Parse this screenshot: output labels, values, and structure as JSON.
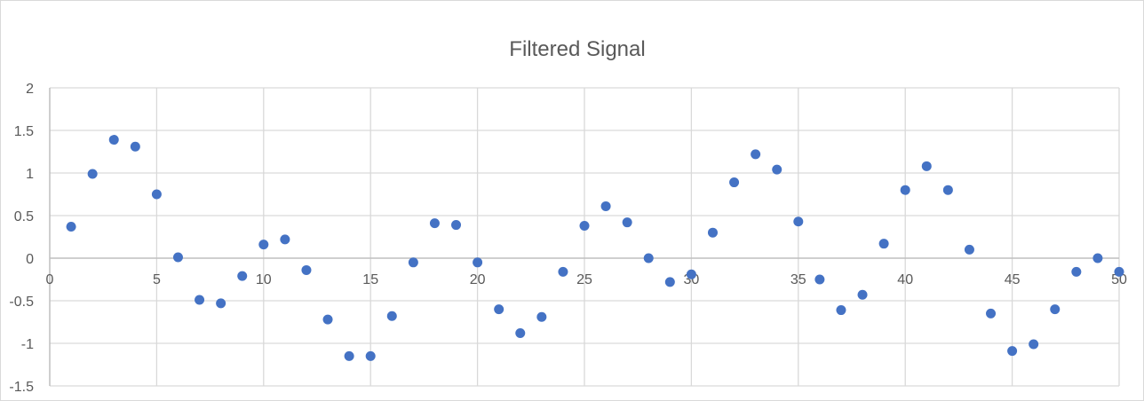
{
  "chart_data": {
    "type": "scatter",
    "title": "Filtered Signal",
    "xlabel": "",
    "ylabel": "",
    "xlim": [
      0,
      50
    ],
    "ylim": [
      -1.5,
      2
    ],
    "x_ticks": [
      "0",
      "5",
      "10",
      "15",
      "20",
      "25",
      "30",
      "35",
      "40",
      "45",
      "50"
    ],
    "y_ticks": [
      "2",
      "1.5",
      "1",
      "0.5",
      "0",
      "-0.5",
      "-1",
      "-1.5"
    ],
    "grid": true,
    "legend": "none",
    "color": "#4472c4",
    "series": [
      {
        "x": [
          1,
          2,
          3,
          4,
          5,
          6,
          7,
          8,
          9,
          10,
          11,
          12,
          13,
          14,
          15,
          16,
          17,
          18,
          19,
          20,
          21,
          22,
          23,
          24,
          25,
          26,
          27,
          28,
          29,
          30,
          31,
          32,
          33,
          34,
          35,
          36,
          37,
          38,
          39,
          40,
          41,
          42,
          43,
          44,
          45,
          46,
          47,
          48,
          49,
          50
        ],
        "y": [
          0.37,
          0.99,
          1.39,
          1.31,
          0.75,
          0.01,
          -0.49,
          -0.53,
          -0.21,
          0.16,
          0.22,
          -0.14,
          -0.72,
          -1.15,
          -1.15,
          -0.68,
          -0.05,
          0.41,
          0.39,
          -0.05,
          -0.6,
          -0.88,
          -0.69,
          -0.16,
          0.38,
          0.61,
          0.42,
          0.0,
          -0.28,
          -0.19,
          0.3,
          0.89,
          1.22,
          1.04,
          0.43,
          -0.25,
          -0.61,
          -0.43,
          0.17,
          0.8,
          1.08,
          0.8,
          0.1,
          -0.65,
          -1.09,
          -1.01,
          -0.6,
          -0.16,
          0.0,
          -0.16
        ]
      }
    ]
  }
}
